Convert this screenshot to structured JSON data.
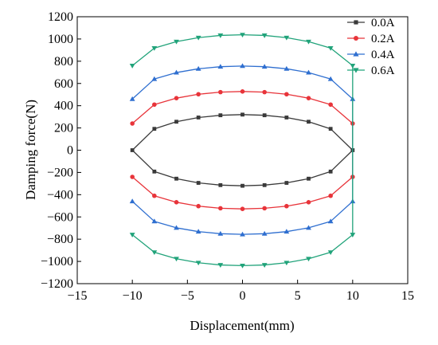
{
  "chart_data": {
    "type": "line",
    "title": "",
    "xlabel": "Displacement(mm)",
    "ylabel": "Damping force(N)",
    "xlim": [
      -15,
      15
    ],
    "ylim": [
      -1200,
      1200
    ],
    "x_ticks": [
      -15,
      -10,
      -5,
      0,
      5,
      10,
      15
    ],
    "y_ticks": [
      -1200,
      -1000,
      -800,
      -600,
      -400,
      -200,
      0,
      200,
      400,
      600,
      800,
      1000,
      1200
    ],
    "x_tick_labels": [
      "−15",
      "−10",
      "−5",
      "0",
      "5",
      "10",
      "15"
    ],
    "y_tick_labels": [
      "−1200",
      "−1000",
      "−800",
      "−600",
      "−400",
      "−200",
      "0",
      "200",
      "400",
      "600",
      "800",
      "1000",
      "1200"
    ],
    "grid": false,
    "legend_position": "top-right",
    "series": [
      {
        "name": "0.0A",
        "marker": "square",
        "color": "#3a3a3a",
        "closed_loop": true,
        "x": [
          -10,
          -8,
          -6,
          -4,
          -2,
          0,
          2,
          4,
          6,
          8,
          10,
          8,
          6,
          4,
          2,
          0,
          -2,
          -4,
          -6,
          -8
        ],
        "y": [
          0,
          192,
          256,
          294,
          314,
          320,
          314,
          294,
          256,
          192,
          0,
          -192,
          -256,
          -294,
          -314,
          -320,
          -314,
          -294,
          -256,
          -192
        ]
      },
      {
        "name": "0.2A",
        "marker": "circle",
        "color": "#e8343a",
        "closed_loop": false,
        "x": [
          -10,
          -8,
          -6,
          -4,
          -2,
          0,
          2,
          4,
          6,
          8,
          10,
          10,
          8,
          6,
          4,
          2,
          0,
          -2,
          -4,
          -6,
          -8,
          -10
        ],
        "y": [
          240,
          410,
          468,
          503,
          522,
          528,
          522,
          503,
          468,
          410,
          240,
          -240,
          -410,
          -468,
          -503,
          -522,
          -528,
          -522,
          -503,
          -468,
          -410,
          -240
        ]
      },
      {
        "name": "0.4A",
        "marker": "triangle-up",
        "color": "#2f6fd0",
        "closed_loop": false,
        "x": [
          -10,
          -8,
          -6,
          -4,
          -2,
          0,
          2,
          4,
          6,
          8,
          10,
          10,
          8,
          6,
          4,
          2,
          0,
          -2,
          -4,
          -6,
          -8,
          -10
        ],
        "y": [
          460,
          640,
          698,
          732,
          751,
          757,
          751,
          732,
          698,
          640,
          460,
          -460,
          -640,
          -698,
          -732,
          -751,
          -757,
          -751,
          -732,
          -698,
          -640,
          -460
        ]
      },
      {
        "name": "0.6A",
        "marker": "triangle-down",
        "color": "#21a37a",
        "closed_loop": false,
        "x": [
          -10,
          -8,
          -6,
          -4,
          -2,
          0,
          2,
          4,
          6,
          8,
          10,
          10,
          8,
          6,
          4,
          2,
          0,
          -2,
          -4,
          -6,
          -8,
          -10
        ],
        "y": [
          760,
          918,
          976,
          1012,
          1032,
          1038,
          1032,
          1012,
          976,
          918,
          760,
          -760,
          -918,
          -976,
          -1012,
          -1032,
          -1038,
          -1032,
          -1012,
          -976,
          -918,
          -760
        ]
      }
    ]
  }
}
